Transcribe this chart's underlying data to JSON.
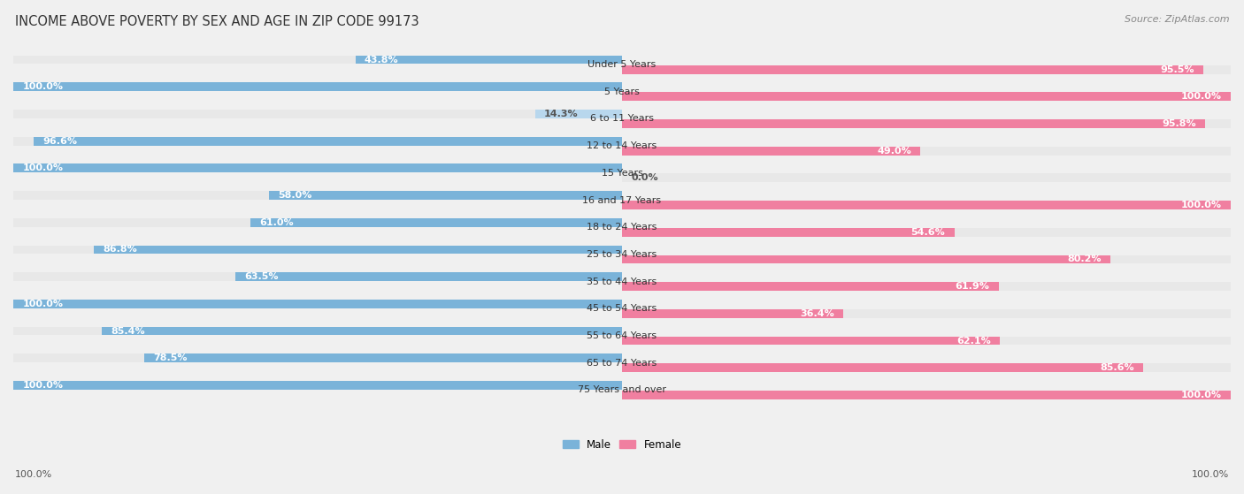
{
  "title": "INCOME ABOVE POVERTY BY SEX AND AGE IN ZIP CODE 99173",
  "source": "Source: ZipAtlas.com",
  "categories": [
    "Under 5 Years",
    "5 Years",
    "6 to 11 Years",
    "12 to 14 Years",
    "15 Years",
    "16 and 17 Years",
    "18 to 24 Years",
    "25 to 34 Years",
    "35 to 44 Years",
    "45 to 54 Years",
    "55 to 64 Years",
    "65 to 74 Years",
    "75 Years and over"
  ],
  "male_values": [
    43.8,
    100.0,
    14.3,
    96.6,
    100.0,
    58.0,
    61.0,
    86.8,
    63.5,
    100.0,
    85.4,
    78.5,
    100.0
  ],
  "female_values": [
    95.5,
    100.0,
    95.8,
    49.0,
    0.0,
    100.0,
    54.6,
    80.2,
    61.9,
    36.4,
    62.1,
    85.6,
    100.0
  ],
  "male_color": "#7ab3d9",
  "female_color": "#f07fa0",
  "male_color_light": "#b8d7ed",
  "female_color_light": "#f9bfcf",
  "male_label": "Male",
  "female_label": "Female",
  "bg_color": "#f0f0f0",
  "bar_bg_color": "#e0e0e0",
  "row_bg_color": "#e8e8e8",
  "title_fontsize": 10.5,
  "source_fontsize": 8,
  "label_fontsize": 8.5,
  "category_fontsize": 8,
  "value_fontsize": 8,
  "footer_label": "100.0%"
}
